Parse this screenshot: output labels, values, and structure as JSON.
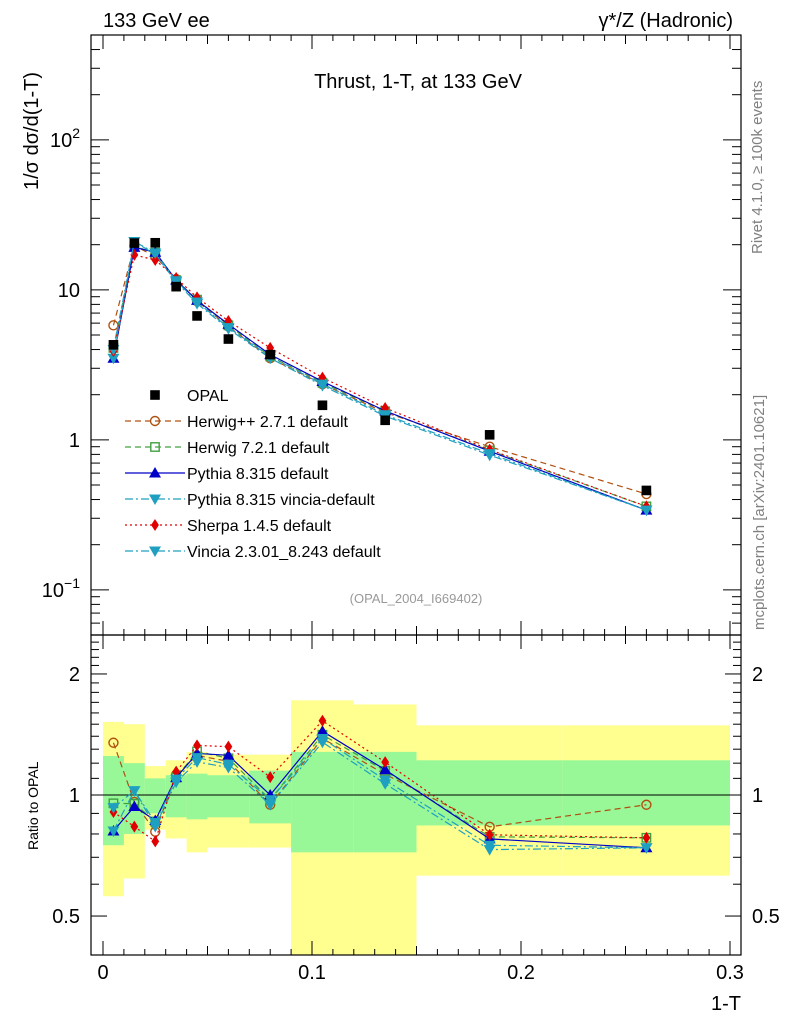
{
  "header": {
    "left": "133 GeV ee",
    "right": "γ*/Z (Hadronic)"
  },
  "side_labels": {
    "rivet": "Rivet 4.1.0, ≥ 100k events",
    "site": "mcplots.cern.ch [arXiv:2401.10621]"
  },
  "chart_data": {
    "type": "line",
    "title": "Thrust, 1-T, at 133 GeV",
    "analysis_tag": "(OPAL_2004_I669402)",
    "xlabel": "1-T",
    "ylabel": "1/σ  dσ/d(1-T)",
    "ratio_ylabel": "Ratio to OPAL",
    "xlim": [
      0,
      0.3
    ],
    "ylim": [
      0.05,
      500
    ],
    "ratio_ylim": [
      0.4,
      2.5
    ],
    "y_scale": "log",
    "x_ticks": [
      "0",
      "0.1",
      "0.2",
      "0.3"
    ],
    "y_ticks": [
      {
        "value": 0.1,
        "base": "10",
        "exp": "−1"
      },
      {
        "value": 1,
        "base": "1",
        "exp": ""
      },
      {
        "value": 10,
        "base": "10",
        "exp": ""
      },
      {
        "value": 100,
        "base": "10",
        "exp": "2"
      }
    ],
    "ratio_ticks": [
      "0.5",
      "1",
      "2"
    ],
    "legend_position": "middle-left",
    "x": [
      0.005,
      0.015,
      0.025,
      0.035,
      0.045,
      0.06,
      0.08,
      0.105,
      0.135,
      0.185,
      0.26
    ],
    "bin_edges": [
      0,
      0.01,
      0.02,
      0.03,
      0.04,
      0.05,
      0.07,
      0.09,
      0.12,
      0.15,
      0.22,
      0.3
    ],
    "data": {
      "name": "OPAL",
      "values": [
        4.3,
        20.5,
        20.6,
        10.5,
        6.7,
        4.7,
        3.7,
        1.7,
        1.35,
        1.08,
        0.46
      ],
      "band_stat": [
        [
          0.75,
          1.25
        ],
        [
          0.8,
          1.2
        ],
        [
          0.9,
          1.1
        ],
        [
          0.88,
          1.12
        ],
        [
          0.87,
          1.13
        ],
        [
          0.88,
          1.12
        ],
        [
          0.85,
          1.15
        ],
        [
          0.72,
          1.28
        ],
        [
          0.72,
          1.28
        ],
        [
          0.84,
          1.22
        ],
        [
          0.84,
          1.22
        ]
      ],
      "band_tot": [
        [
          0.56,
          1.52
        ],
        [
          0.62,
          1.5
        ],
        [
          0.82,
          1.18
        ],
        [
          0.78,
          1.22
        ],
        [
          0.72,
          1.28
        ],
        [
          0.74,
          1.26
        ],
        [
          0.74,
          1.26
        ],
        [
          0.36,
          1.72
        ],
        [
          0.36,
          1.68
        ],
        [
          0.63,
          1.49
        ],
        [
          0.63,
          1.49
        ]
      ]
    },
    "series": [
      {
        "name": "Herwig++ 2.7.1 default",
        "color": "#b05010",
        "dash": "6,4",
        "marker": "circle-open",
        "values": [
          5.8,
          19.7,
          16.7,
          11.8,
          8.4,
          5.7,
          3.5,
          2.35,
          1.52,
          0.9,
          0.435
        ]
      },
      {
        "name": "Herwig 7.2.1 default",
        "color": "#40a040",
        "dash": "6,4",
        "marker": "square-open",
        "values": [
          4.1,
          19.5,
          17.7,
          11.6,
          8.6,
          5.8,
          3.6,
          2.4,
          1.55,
          0.85,
          0.36
        ]
      },
      {
        "name": "Pythia 8.315 default",
        "color": "#0000c8",
        "dash": "",
        "marker": "triangle-up",
        "values": [
          3.5,
          19.2,
          17.8,
          11.6,
          8.5,
          5.9,
          3.7,
          2.45,
          1.56,
          0.84,
          0.34
        ]
      },
      {
        "name": "Pythia 8.315 vincia-default",
        "color": "#20a0c0",
        "dash": "8,3,2,3",
        "marker": "triangle-down",
        "values": [
          3.5,
          21.0,
          17.2,
          11.3,
          8.1,
          5.5,
          3.5,
          2.3,
          1.44,
          0.79,
          0.34
        ]
      },
      {
        "name": "Sherpa 1.4.5 default",
        "color": "#e00000",
        "dash": "2,3",
        "marker": "diamond",
        "values": [
          3.9,
          17.1,
          15.8,
          12.0,
          8.9,
          6.2,
          4.1,
          2.6,
          1.63,
          0.86,
          0.36
        ]
      },
      {
        "name": "Vincia 2.3.01_8.243 default",
        "color": "#20a0c0",
        "dash": "8,3,2,3",
        "marker": "triangle-down",
        "values": [
          4.0,
          21.0,
          17.6,
          11.5,
          8.3,
          5.6,
          3.6,
          2.35,
          1.47,
          0.81,
          0.34
        ]
      }
    ]
  }
}
